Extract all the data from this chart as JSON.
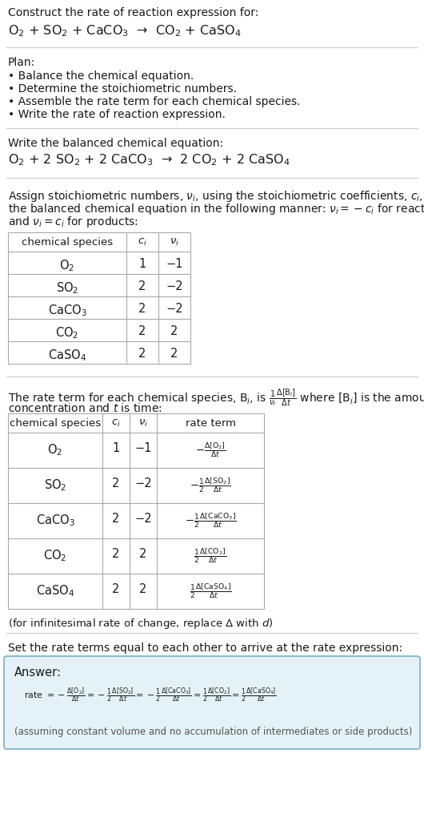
{
  "bg_color": "#ffffff",
  "text_color": "#1a1a1a",
  "title_line1": "Construct the rate of reaction expression for:",
  "reaction_unbalanced": "O$_2$ + SO$_2$ + CaCO$_3$  →  CO$_2$ + CaSO$_4$",
  "plan_label": "Plan:",
  "plan_items": [
    "• Balance the chemical equation.",
    "• Determine the stoichiometric numbers.",
    "• Assemble the rate term for each chemical species.",
    "• Write the rate of reaction expression."
  ],
  "balanced_label": "Write the balanced chemical equation:",
  "reaction_balanced": "O$_2$ + 2 SO$_2$ + 2 CaCO$_3$  →  2 CO$_2$ + 2 CaSO$_4$",
  "stoich_intro_lines": [
    "Assign stoichiometric numbers, $\\nu_i$, using the stoichiometric coefficients, $c_i$, from",
    "the balanced chemical equation in the following manner: $\\nu_i = -c_i$ for reactants",
    "and $\\nu_i = c_i$ for products:"
  ],
  "table1_headers": [
    "chemical species",
    "$c_i$",
    "$\\nu_i$"
  ],
  "table1_rows": [
    [
      "O$_2$",
      "1",
      "−1"
    ],
    [
      "SO$_2$",
      "2",
      "−2"
    ],
    [
      "CaCO$_3$",
      "2",
      "−2"
    ],
    [
      "CO$_2$",
      "2",
      "2"
    ],
    [
      "CaSO$_4$",
      "2",
      "2"
    ]
  ],
  "rate_term_intro_line1": "The rate term for each chemical species, B$_i$, is $\\frac{1}{\\nu_i}\\frac{\\Delta[\\mathrm{B}_i]}{\\Delta t}$ where [B$_i$] is the amount",
  "rate_term_intro_line2": "concentration and $t$ is time:",
  "table2_headers": [
    "chemical species",
    "$c_i$",
    "$\\nu_i$",
    "rate term"
  ],
  "table2_rows": [
    [
      "O$_2$",
      "1",
      "−1",
      "$-\\frac{\\Delta[\\mathrm{O_2}]}{\\Delta t}$"
    ],
    [
      "SO$_2$",
      "2",
      "−2",
      "$-\\frac{1}{2}\\frac{\\Delta[\\mathrm{SO_2}]}{\\Delta t}$"
    ],
    [
      "CaCO$_3$",
      "2",
      "−2",
      "$-\\frac{1}{2}\\frac{\\Delta[\\mathrm{CaCO_3}]}{\\Delta t}$"
    ],
    [
      "CO$_2$",
      "2",
      "2",
      "$\\frac{1}{2}\\frac{\\Delta[\\mathrm{CO_2}]}{\\Delta t}$"
    ],
    [
      "CaSO$_4$",
      "2",
      "2",
      "$\\frac{1}{2}\\frac{\\Delta[\\mathrm{CaSO_4}]}{\\Delta t}$"
    ]
  ],
  "infinitesimal_note": "(for infinitesimal rate of change, replace Δ with $d$)",
  "set_equal_text": "Set the rate terms equal to each other to arrive at the rate expression:",
  "answer_label": "Answer:",
  "answer_box_facecolor": "#e4f2f8",
  "answer_box_edgecolor": "#7ab0c8",
  "rate_expression": "rate $= -\\frac{\\Delta[\\mathrm{O_2}]}{\\Delta t} = -\\frac{1}{2}\\frac{\\Delta[\\mathrm{SO_2}]}{\\Delta t} = -\\frac{1}{2}\\frac{\\Delta[\\mathrm{CaCO_3}]}{\\Delta t} = \\frac{1}{2}\\frac{\\Delta[\\mathrm{CO_2}]}{\\Delta t} = \\frac{1}{2}\\frac{\\Delta[\\mathrm{CaSO_4}]}{\\Delta t}$",
  "assuming_note": "(assuming constant volume and no accumulation of intermediates or side products)"
}
